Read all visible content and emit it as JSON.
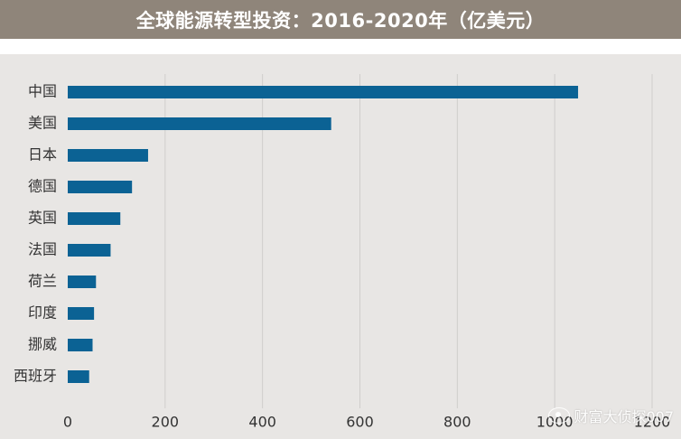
{
  "title": "全球能源转型投资：2016-2020年（亿美元）",
  "watermark": "财富大侦探007",
  "colors": {
    "bar": "#0b6294",
    "title_bg": "#8f857a",
    "plot_bg": "#e8e6e4",
    "grid": "#cfcdcb"
  },
  "chart_data": {
    "type": "bar",
    "orientation": "horizontal",
    "title": "全球能源转型投资：2016-2020年（亿美元）",
    "categories": [
      "中国",
      "美国",
      "日本",
      "德国",
      "英国",
      "法国",
      "荷兰",
      "印度",
      "挪威",
      "西班牙"
    ],
    "values": [
      1048,
      541,
      165,
      132,
      108,
      88,
      58,
      54,
      51,
      44
    ],
    "xlim": [
      0,
      1200
    ],
    "xticks": [
      "0",
      "200",
      "400",
      "600",
      "800",
      "1000",
      "1200"
    ],
    "xtick_values": [
      0,
      200,
      400,
      600,
      800,
      1000,
      1200
    ],
    "grid": "vertical",
    "legend": "none"
  }
}
